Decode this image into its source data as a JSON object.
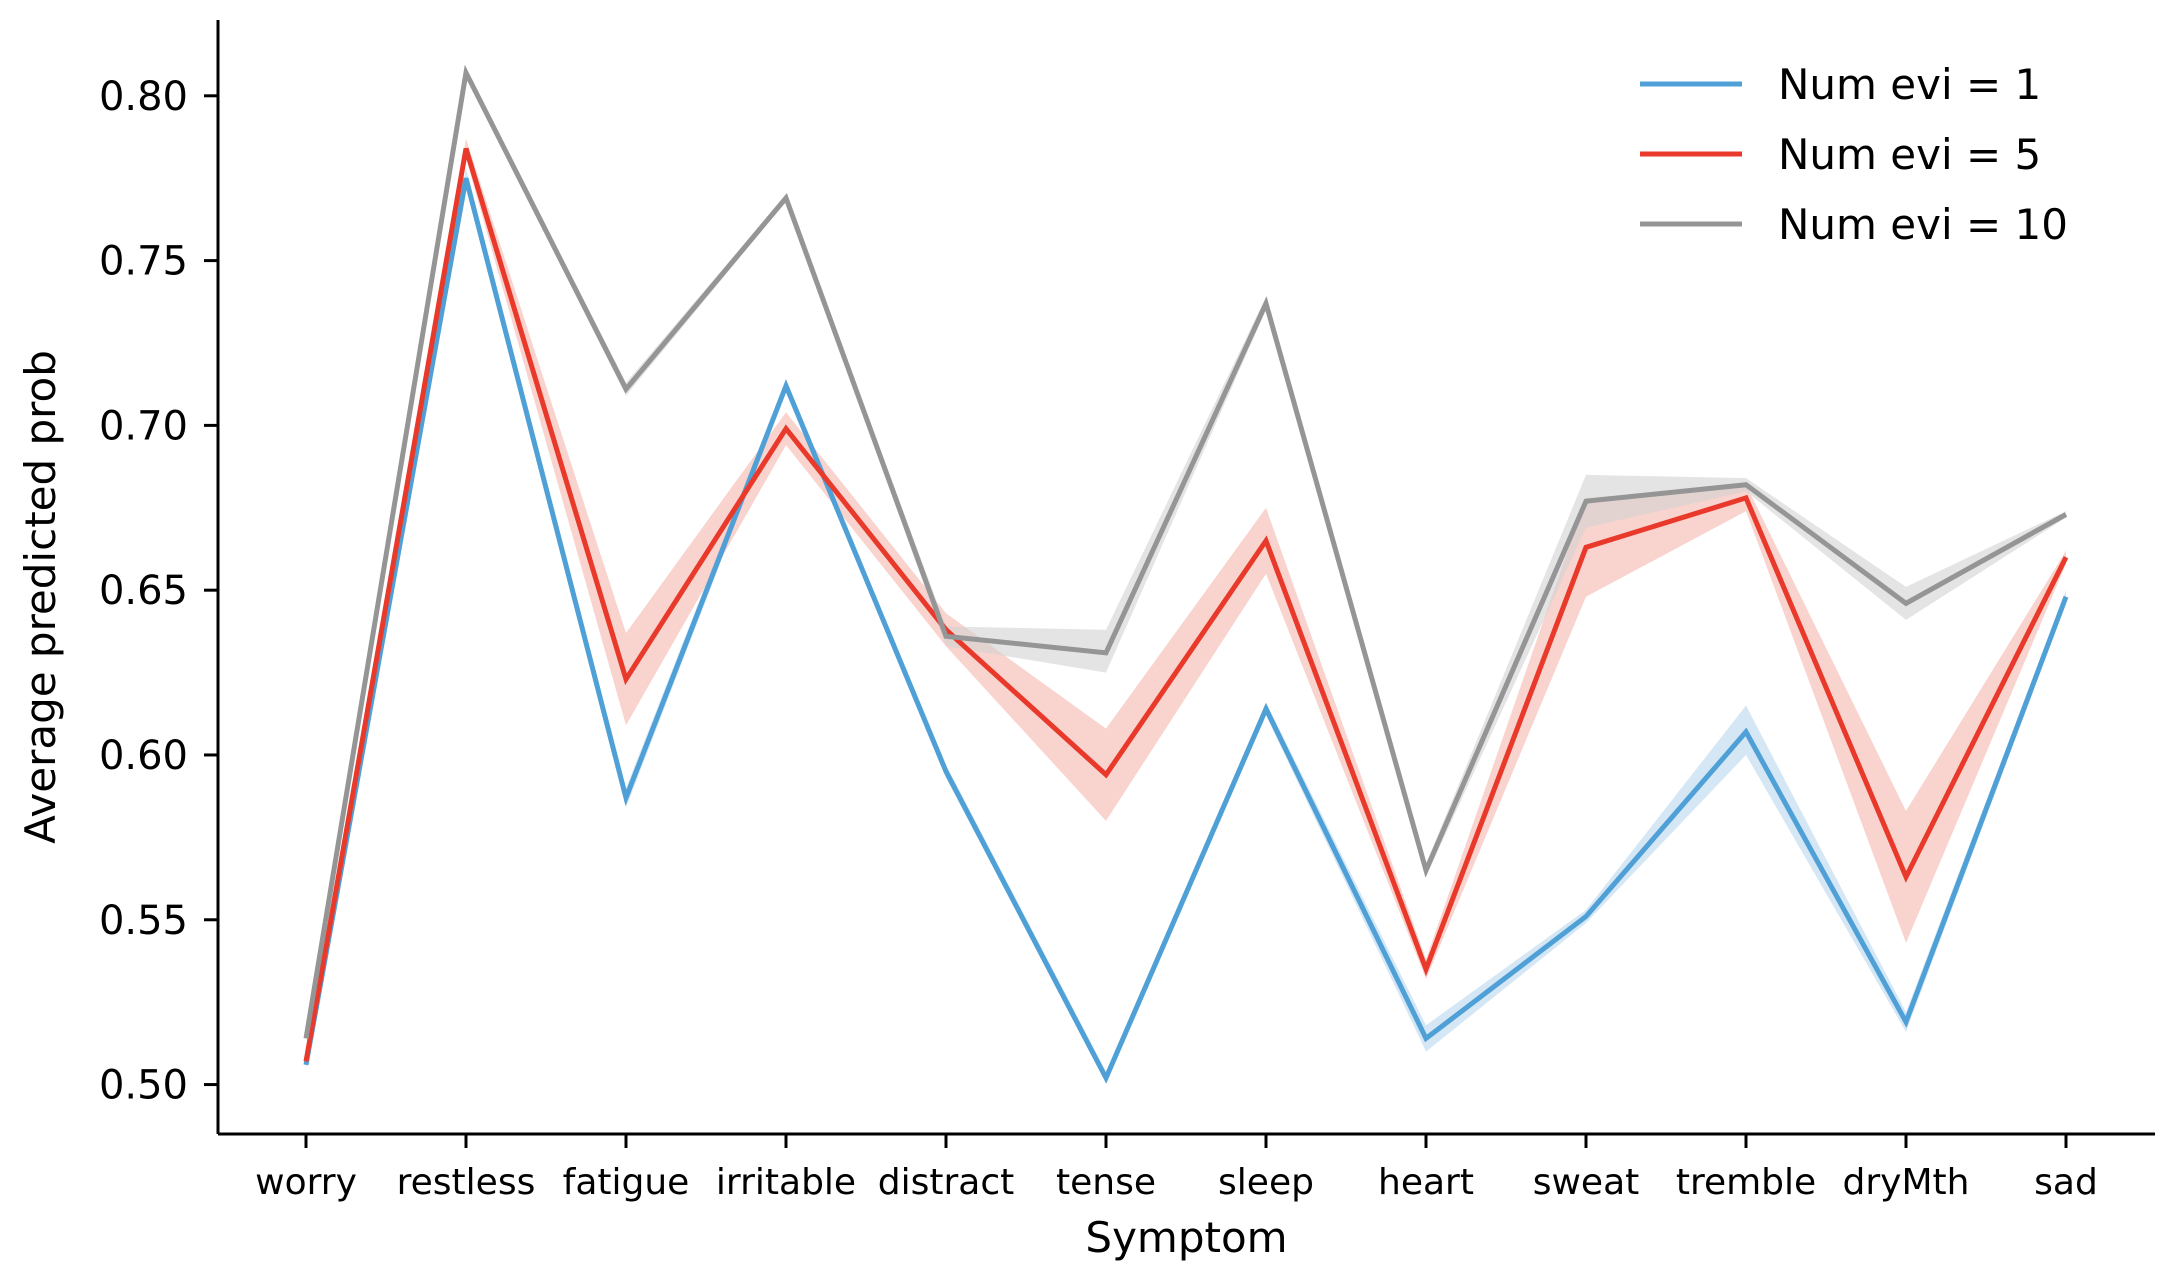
{
  "chart_data": {
    "type": "line",
    "title": "",
    "xlabel": "Symptom",
    "ylabel": "Average predicted prob",
    "categories": [
      "worry",
      "restless",
      "fatigue",
      "irritable",
      "distract",
      "tense",
      "sleep",
      "heart",
      "sweat",
      "tremble",
      "dryMth",
      "sad"
    ],
    "ylim": [
      0.485,
      0.823
    ],
    "yticks": [
      0.5,
      0.55,
      0.6,
      0.65,
      0.7,
      0.75,
      0.8
    ],
    "ytick_labels": [
      "0.50",
      "0.55",
      "0.60",
      "0.65",
      "0.70",
      "0.75",
      "0.80"
    ],
    "grid": false,
    "legend_position": "top-right",
    "series": [
      {
        "name": "Num evi = 1",
        "color": "#4fa0d6",
        "band_color": "#b9d7ee",
        "values": [
          0.506,
          0.775,
          0.587,
          0.712,
          0.595,
          0.502,
          0.614,
          0.514,
          0.551,
          0.607,
          0.519,
          0.648
        ],
        "lower": [
          0.505,
          0.772,
          0.584,
          0.71,
          0.593,
          0.501,
          0.612,
          0.51,
          0.549,
          0.6,
          0.516,
          0.646
        ],
        "upper": [
          0.507,
          0.778,
          0.59,
          0.714,
          0.597,
          0.504,
          0.616,
          0.518,
          0.553,
          0.615,
          0.522,
          0.65
        ]
      },
      {
        "name": "Num evi = 5",
        "color": "#e8392a",
        "band_color": "#f5b5ad",
        "values": [
          0.507,
          0.784,
          0.623,
          0.699,
          0.638,
          0.594,
          0.665,
          0.535,
          0.663,
          0.678,
          0.563,
          0.66
        ],
        "lower": [
          0.505,
          0.781,
          0.609,
          0.694,
          0.633,
          0.58,
          0.655,
          0.532,
          0.648,
          0.674,
          0.543,
          0.658
        ],
        "upper": [
          0.509,
          0.787,
          0.637,
          0.704,
          0.643,
          0.608,
          0.675,
          0.538,
          0.678,
          0.682,
          0.583,
          0.662
        ]
      },
      {
        "name": "Num evi = 10",
        "color": "#959595",
        "band_color": "#d2d2d2",
        "values": [
          0.514,
          0.807,
          0.711,
          0.769,
          0.636,
          0.631,
          0.737,
          0.565,
          0.677,
          0.682,
          0.646,
          0.673
        ],
        "lower": [
          0.513,
          0.806,
          0.709,
          0.768,
          0.633,
          0.625,
          0.735,
          0.563,
          0.669,
          0.68,
          0.641,
          0.672
        ],
        "upper": [
          0.515,
          0.808,
          0.713,
          0.77,
          0.639,
          0.638,
          0.739,
          0.567,
          0.685,
          0.684,
          0.651,
          0.674
        ]
      }
    ]
  }
}
